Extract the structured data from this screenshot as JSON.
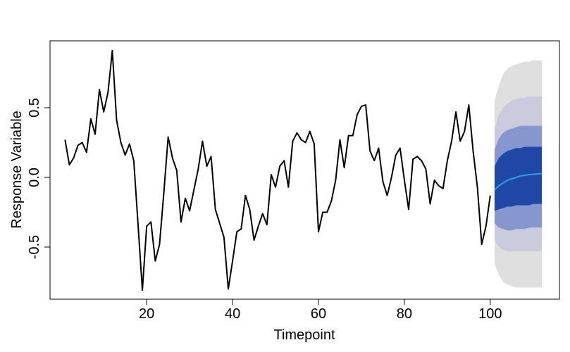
{
  "chart_data": {
    "type": "line",
    "x_label": "Timepoint",
    "y_label": "Response Variable",
    "xlim": [
      -2.5,
      116.1
    ],
    "ylim": [
      -0.874,
      0.98
    ],
    "xticks": [
      20,
      40,
      60,
      80,
      100
    ],
    "yticks": [
      -0.5,
      {
        "value": 0,
        "label": "0.0"
      },
      0.5
    ],
    "grid": false,
    "bands": [
      {
        "color": "#dedede",
        "upper": [
          0.55,
          0.66,
          0.74,
          0.78,
          0.8,
          0.81,
          0.82,
          0.83,
          0.83,
          0.84,
          0.84,
          0.84
        ],
        "lower": [
          -0.62,
          -0.7,
          -0.75,
          -0.77,
          -0.78,
          -0.79,
          -0.79,
          -0.79,
          -0.79,
          -0.79,
          -0.79,
          -0.79
        ]
      },
      {
        "color": "#c9cbdc",
        "upper": [
          0.35,
          0.45,
          0.5,
          0.53,
          0.55,
          0.56,
          0.57,
          0.57,
          0.58,
          0.58,
          0.58,
          0.58
        ],
        "lower": [
          -0.45,
          -0.5,
          -0.52,
          -0.53,
          -0.53,
          -0.53,
          -0.53,
          -0.53,
          -0.53,
          -0.53,
          -0.53,
          -0.53
        ]
      },
      {
        "color": "#8796cf",
        "upper": [
          0.2,
          0.28,
          0.32,
          0.34,
          0.35,
          0.36,
          0.37,
          0.37,
          0.37,
          0.37,
          0.37,
          0.37
        ],
        "lower": [
          -0.33,
          -0.36,
          -0.37,
          -0.38,
          -0.38,
          -0.37,
          -0.37,
          -0.37,
          -0.36,
          -0.36,
          -0.36,
          -0.36
        ]
      },
      {
        "color": "#1f47a6",
        "upper": [
          0.08,
          0.14,
          0.17,
          0.19,
          0.2,
          0.21,
          0.21,
          0.22,
          0.22,
          0.22,
          0.22,
          0.22
        ],
        "lower": [
          -0.24,
          -0.23,
          -0.22,
          -0.21,
          -0.21,
          -0.2,
          -0.2,
          -0.2,
          -0.2,
          -0.19,
          -0.19,
          -0.19
        ]
      }
    ],
    "series": [
      {
        "color": "#000000",
        "x": [
          1,
          2,
          3,
          4,
          5,
          6,
          7,
          8,
          9,
          10,
          11,
          12,
          13,
          14,
          15,
          16,
          17,
          18,
          19,
          20,
          21,
          22,
          23,
          24,
          25,
          26,
          27,
          28,
          29,
          30,
          31,
          32,
          33,
          34,
          35,
          36,
          37,
          38,
          39,
          40,
          41,
          42,
          43,
          44,
          45,
          46,
          47,
          48,
          49,
          50,
          51,
          52,
          53,
          54,
          55,
          56,
          57,
          58,
          59,
          60,
          61,
          62,
          63,
          64,
          65,
          66,
          67,
          68,
          69,
          70,
          71,
          72,
          73,
          74,
          75,
          76,
          77,
          78,
          79,
          80,
          81,
          82,
          83,
          84,
          85,
          86,
          87,
          88,
          89,
          90,
          91,
          92,
          93,
          94,
          95,
          96,
          97,
          98,
          99,
          100
        ],
        "values": [
          0.27,
          0.09,
          0.14,
          0.23,
          0.25,
          0.18,
          0.42,
          0.31,
          0.63,
          0.47,
          0.61,
          0.91,
          0.41,
          0.25,
          0.16,
          0.24,
          0.12,
          -0.34,
          -0.81,
          -0.35,
          -0.32,
          -0.6,
          -0.48,
          -0.11,
          0.29,
          0.14,
          0.05,
          -0.32,
          -0.15,
          -0.24,
          -0.09,
          0.06,
          0.26,
          0.08,
          0.15,
          -0.23,
          -0.33,
          -0.43,
          -0.8,
          -0.6,
          -0.39,
          -0.37,
          -0.13,
          -0.23,
          -0.45,
          -0.35,
          -0.26,
          -0.34,
          0.02,
          -0.07,
          0.08,
          0.12,
          -0.07,
          0.26,
          0.32,
          0.27,
          0.25,
          0.33,
          0.24,
          -0.39,
          -0.25,
          -0.25,
          -0.17,
          -0.02,
          0.27,
          0.07,
          0.3,
          0.3,
          0.45,
          0.51,
          0.52,
          0.19,
          0.12,
          0.21,
          -0.03,
          -0.13,
          0.0,
          0.16,
          0.21,
          -0.02,
          -0.23,
          0.13,
          0.15,
          0.12,
          0.06,
          -0.19,
          -0.02,
          -0.06,
          -0.08,
          0.12,
          0.26,
          0.47,
          0.26,
          0.33,
          0.52,
          0.19,
          -0.07,
          -0.48,
          -0.35,
          -0.13
        ]
      },
      {
        "color": "#2f9fe6",
        "x": [
          101,
          102,
          103,
          104,
          105,
          106,
          107,
          108,
          109,
          110,
          111,
          112
        ],
        "values": [
          -0.09,
          -0.06,
          -0.04,
          -0.02,
          -0.01,
          0.0,
          0.01,
          0.015,
          0.02,
          0.022,
          0.025,
          0.027
        ]
      }
    ]
  }
}
